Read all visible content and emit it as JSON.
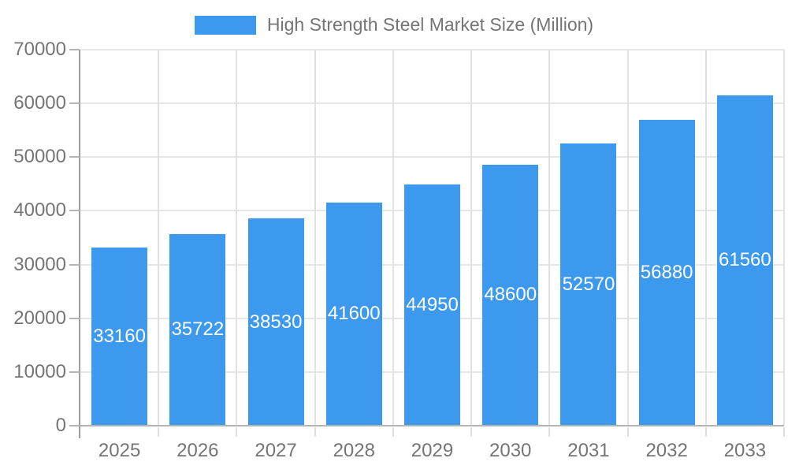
{
  "chart_data": {
    "type": "bar",
    "title": "High Strength Steel Market Size (Million)",
    "categories": [
      "2025",
      "2026",
      "2027",
      "2028",
      "2029",
      "2030",
      "2031",
      "2032",
      "2033"
    ],
    "values": [
      33160,
      35722,
      38530,
      41600,
      44950,
      48600,
      52570,
      56880,
      61560
    ],
    "value_labels": [
      "33160",
      "35722",
      "38530",
      "41600",
      "44950",
      "48600",
      "52570",
      "56880",
      "61560"
    ],
    "xlabel": "",
    "ylabel": "",
    "ylim": [
      0,
      70000
    ],
    "y_ticks": [
      0,
      10000,
      20000,
      30000,
      40000,
      50000,
      60000,
      70000
    ],
    "y_tick_labels": [
      "0",
      "10000",
      "20000",
      "30000",
      "40000",
      "50000",
      "60000",
      "70000"
    ],
    "grid": true,
    "legend_position": "top-center",
    "colors": {
      "bar": "#3C99EE",
      "value_label": "#FFFFFF",
      "text": "#757575",
      "grid_h": "#E6E6E6",
      "grid_v": "#E2E2E2",
      "y_axis": "#9E9E9E",
      "x_axis": "#B5B5B5",
      "background": "#FFFFFF"
    }
  }
}
